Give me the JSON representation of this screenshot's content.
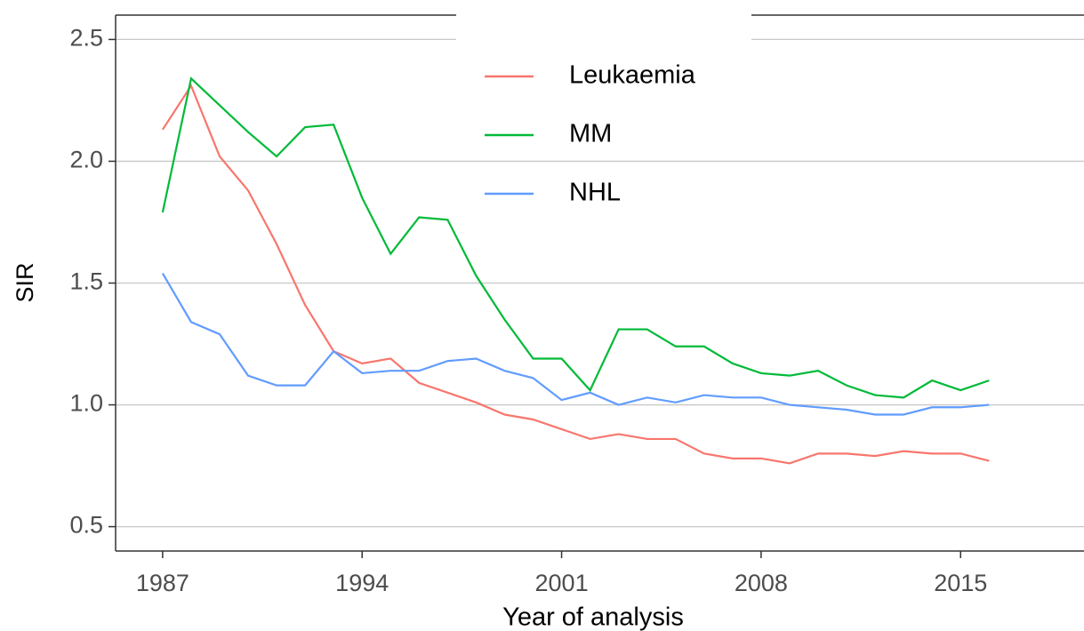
{
  "chart_data": {
    "type": "line",
    "x_label": "Year of analysis",
    "y_label": "SIR",
    "x": [
      1987,
      1988,
      1989,
      1990,
      1991,
      1992,
      1993,
      1994,
      1995,
      1996,
      1997,
      1998,
      1999,
      2000,
      2001,
      2002,
      2003,
      2004,
      2005,
      2006,
      2007,
      2008,
      2009,
      2010,
      2011,
      2012,
      2013,
      2014,
      2015,
      2016
    ],
    "series": [
      {
        "name": "Leukaemia",
        "color": "#F8766D",
        "values": [
          2.13,
          2.31,
          2.02,
          1.88,
          1.66,
          1.41,
          1.22,
          1.17,
          1.19,
          1.09,
          1.05,
          1.01,
          0.96,
          0.94,
          0.9,
          0.86,
          0.88,
          0.86,
          0.86,
          0.8,
          0.78,
          0.78,
          0.76,
          0.8,
          0.8,
          0.79,
          0.81,
          0.8,
          0.8,
          0.77
        ]
      },
      {
        "name": "MM",
        "color": "#00BA38",
        "values": [
          1.79,
          2.34,
          2.23,
          2.12,
          2.02,
          2.14,
          2.15,
          1.85,
          1.62,
          1.77,
          1.76,
          1.53,
          1.35,
          1.19,
          1.19,
          1.06,
          1.31,
          1.31,
          1.24,
          1.24,
          1.17,
          1.13,
          1.12,
          1.14,
          1.08,
          1.04,
          1.03,
          1.1,
          1.06,
          1.1
        ]
      },
      {
        "name": "NHL",
        "color": "#619CFF",
        "values": [
          1.54,
          1.34,
          1.29,
          1.12,
          1.08,
          1.08,
          1.22,
          1.13,
          1.14,
          1.14,
          1.18,
          1.19,
          1.14,
          1.11,
          1.02,
          1.05,
          1.0,
          1.03,
          1.01,
          1.04,
          1.03,
          1.03,
          1.0,
          0.99,
          0.98,
          0.96,
          0.96,
          0.99,
          0.99,
          1.0
        ]
      }
    ],
    "xlim": [
      1985.35,
      2019.33
    ],
    "xticks": [
      1987,
      1994,
      2001,
      2008,
      2015
    ],
    "ylim": [
      0.4,
      2.6
    ],
    "yticks": [
      0.5,
      {
        "value": 1,
        "label": "1.0"
      },
      1.5,
      {
        "value": 2,
        "label": "2.0"
      },
      2.5
    ],
    "grid": true,
    "legend": "top"
  }
}
